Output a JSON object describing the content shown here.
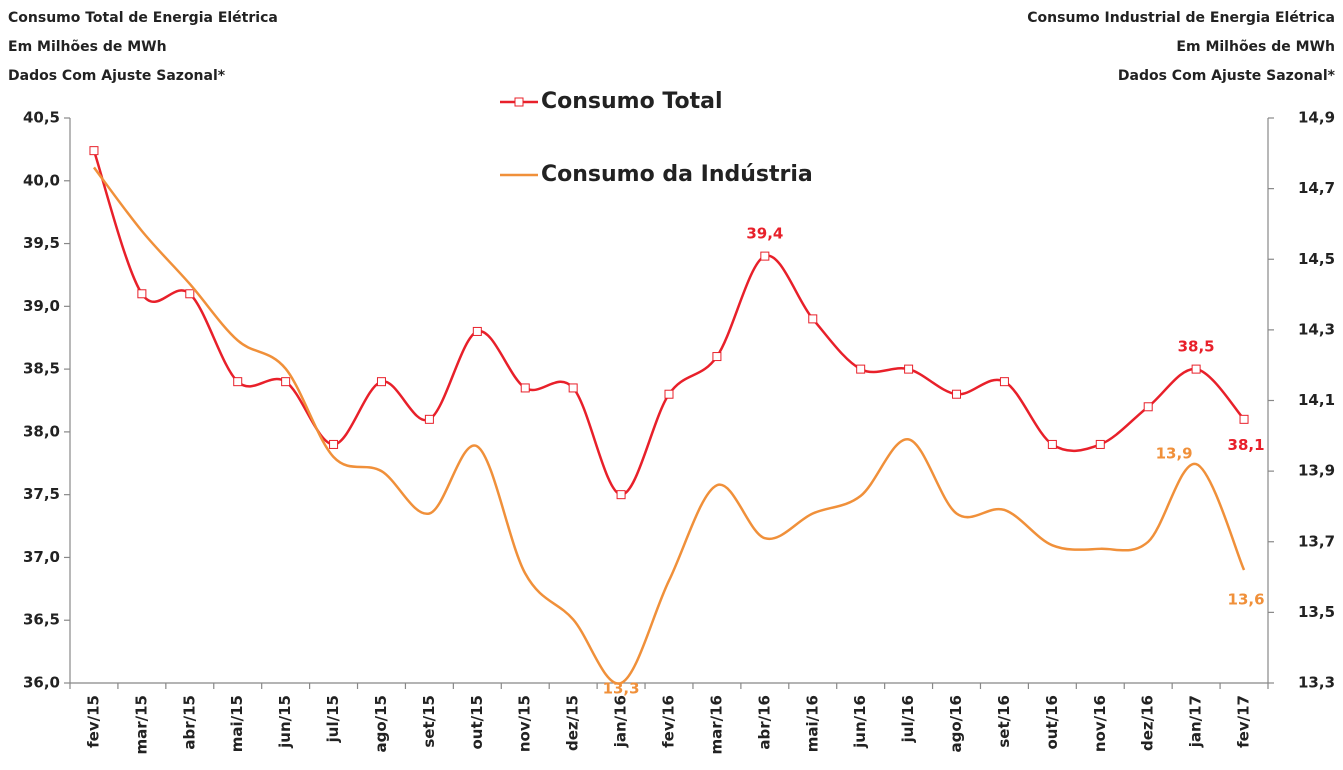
{
  "chart_data": {
    "type": "line",
    "title_left": [
      "Consumo Total de Energia Elétrica",
      "Em Milhões de MWh",
      "Dados Com Ajuste Sazonal*"
    ],
    "title_right": [
      "Consumo Industrial de Energia Elétrica",
      "Em Milhões de MWh",
      "Dados Com Ajuste Sazonal*"
    ],
    "categories": [
      "fev/15",
      "mar/15",
      "abr/15",
      "mai/15",
      "jun/15",
      "jul/15",
      "ago/15",
      "set/15",
      "out/15",
      "nov/15",
      "dez/15",
      "jan/16",
      "fev/16",
      "mar/16",
      "abr/16",
      "mai/16",
      "jun/16",
      "jul/16",
      "ago/16",
      "set/16",
      "out/16",
      "nov/16",
      "dez/16",
      "jan/17",
      "fev/17"
    ],
    "series": [
      {
        "name": "Consumo Total",
        "color": "#e8202a",
        "markers": true,
        "values": [
          40.24,
          39.1,
          39.1,
          38.4,
          38.4,
          37.9,
          38.4,
          38.1,
          38.8,
          38.35,
          38.35,
          37.5,
          38.3,
          38.6,
          39.4,
          38.9,
          38.5,
          38.5,
          38.3,
          38.4,
          37.9,
          37.9,
          38.2,
          38.5,
          38.1
        ],
        "value_labels": [
          null,
          null,
          null,
          null,
          null,
          null,
          null,
          null,
          null,
          null,
          null,
          null,
          null,
          null,
          "39,4",
          null,
          null,
          null,
          null,
          null,
          null,
          null,
          null,
          "38,5",
          "38,1"
        ]
      },
      {
        "name": "Consumo da Indústria",
        "color": "#f0903a",
        "markers": false,
        "axis": "y2",
        "values": [
          14.76,
          14.58,
          14.43,
          14.27,
          14.19,
          13.94,
          13.9,
          13.78,
          13.97,
          13.61,
          13.48,
          13.3,
          13.59,
          13.86,
          13.71,
          13.78,
          13.83,
          13.99,
          13.78,
          13.79,
          13.69,
          13.68,
          13.7,
          13.92,
          13.62
        ],
        "value_labels": [
          null,
          null,
          null,
          null,
          null,
          null,
          null,
          null,
          null,
          null,
          null,
          "13,3",
          null,
          null,
          null,
          null,
          null,
          null,
          null,
          null,
          null,
          null,
          null,
          "13,9",
          "13,6"
        ]
      }
    ],
    "ylim": [
      36.0,
      40.5
    ],
    "yticks": [
      {
        "value": 36.0,
        "label": "36,0"
      },
      {
        "value": 36.5,
        "label": "36,5"
      },
      {
        "value": 37.0,
        "label": "37,0"
      },
      {
        "value": 37.5,
        "label": "37,5"
      },
      {
        "value": 38.0,
        "label": "38,0"
      },
      {
        "value": 38.5,
        "label": "38,5"
      },
      {
        "value": 39.0,
        "label": "39,0"
      },
      {
        "value": 39.5,
        "label": "39,5"
      },
      {
        "value": 40.0,
        "label": "40,0"
      },
      {
        "value": 40.5,
        "label": "40,5"
      }
    ],
    "y2lim": [
      13.3,
      14.9
    ],
    "y2ticks": [
      {
        "value": 13.3,
        "label": "13,3"
      },
      {
        "value": 13.5,
        "label": "13,5"
      },
      {
        "value": 13.7,
        "label": "13,7"
      },
      {
        "value": 13.9,
        "label": "13,9"
      },
      {
        "value": 14.1,
        "label": "14,1"
      },
      {
        "value": 14.3,
        "label": "14,3"
      },
      {
        "value": 14.5,
        "label": "14,5"
      },
      {
        "value": 14.7,
        "label": "14,7"
      },
      {
        "value": 14.9,
        "label": "14,9"
      }
    ],
    "grid": false
  }
}
